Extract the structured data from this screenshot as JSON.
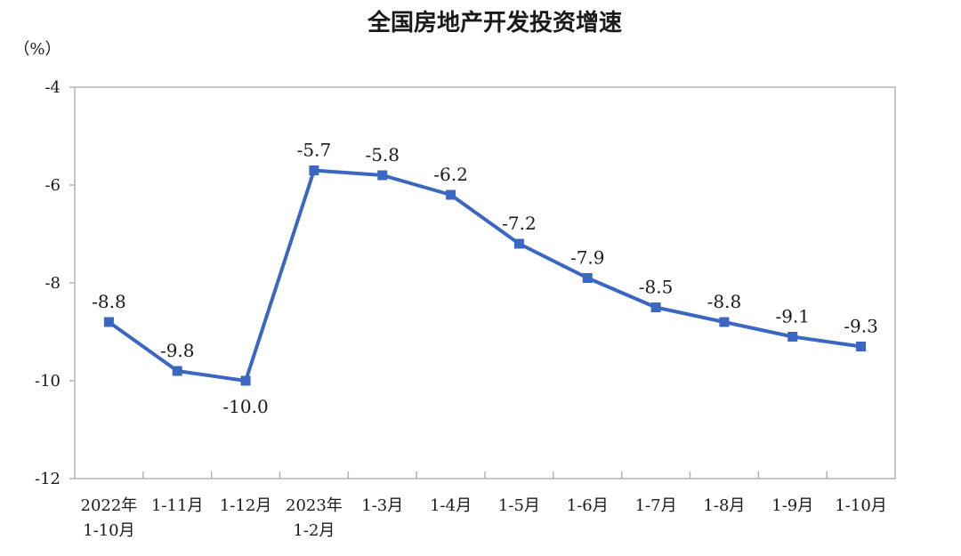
{
  "chart_data": {
    "type": "line",
    "title": "全国房地产开发投资增速",
    "ylabel": "（%）",
    "xlabel": "",
    "ylim": [
      -12,
      -4
    ],
    "yticks": [
      -4,
      -6,
      -8,
      -10,
      -12
    ],
    "grid": false,
    "legend": "none",
    "categories": [
      [
        "2022年",
        "1-10月"
      ],
      [
        "1-11月"
      ],
      [
        "1-12月"
      ],
      [
        "2023年",
        "1-2月"
      ],
      [
        "1-3月"
      ],
      [
        "1-4月"
      ],
      [
        "1-5月"
      ],
      [
        "1-6月"
      ],
      [
        "1-7月"
      ],
      [
        "1-8月"
      ],
      [
        "1-9月"
      ],
      [
        "1-10月"
      ]
    ],
    "series": [
      {
        "values": [
          -8.8,
          -9.8,
          -10.0,
          -5.7,
          -5.8,
          -6.2,
          -7.2,
          -7.9,
          -8.5,
          -8.8,
          -9.1,
          -9.3
        ],
        "data_labels": [
          "-8.8",
          "-9.8",
          "-10.0",
          "-5.7",
          "-5.8",
          "-6.2",
          "-7.2",
          "-7.9",
          "-8.5",
          "-8.8",
          "-9.1",
          "-9.3"
        ],
        "label_positions": [
          "above",
          "above",
          "below",
          "above",
          "above",
          "above",
          "above",
          "above",
          "above",
          "above",
          "above",
          "above"
        ],
        "color": "#3a67c2"
      }
    ],
    "axis_color": "#b3b3b3"
  }
}
